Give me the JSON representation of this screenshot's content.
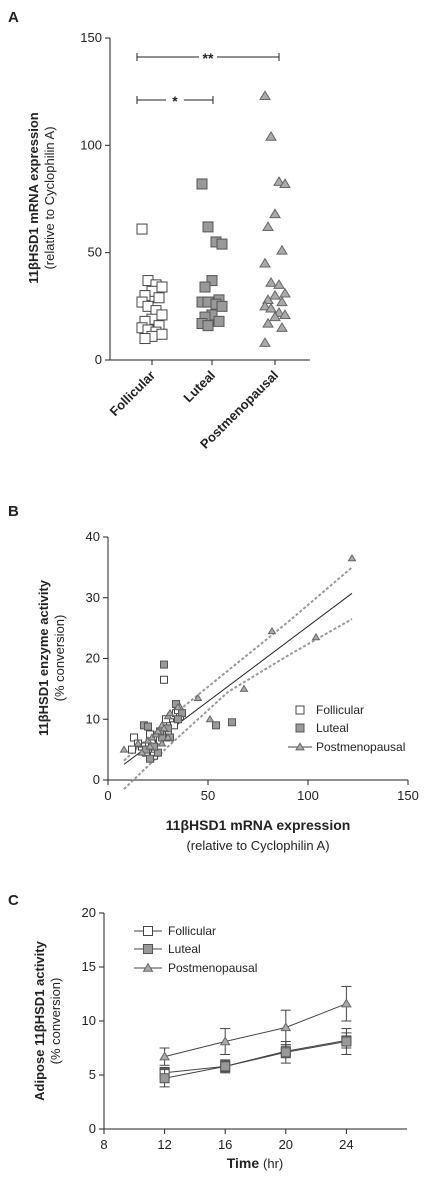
{
  "chart_data": [
    {
      "panel": "A",
      "type": "scatter",
      "ylabel": "11βHSD1 mRNA expression",
      "ylabel_sub": "(relative to Cyclophilin A)",
      "xlabel": "",
      "ylim": [
        0,
        150
      ],
      "yticks": [
        0,
        50,
        100,
        150
      ],
      "categories": [
        "Follicular",
        "Luteal",
        "Postmenopausal"
      ],
      "series": [
        {
          "name": "Follicular",
          "marker": "square-open",
          "values": [
            61,
            37,
            35,
            34,
            32,
            30,
            29,
            27,
            25,
            23,
            21,
            19,
            18,
            16,
            15,
            14,
            13,
            12,
            11,
            10
          ]
        },
        {
          "name": "Luteal",
          "marker": "square-filled",
          "values": [
            82,
            62,
            55,
            54,
            37,
            34,
            28,
            27,
            27,
            26,
            25,
            21,
            20,
            18,
            17,
            16
          ]
        },
        {
          "name": "Postmenopausal",
          "marker": "triangle-filled",
          "values": [
            123,
            104,
            83,
            82,
            68,
            62,
            51,
            45,
            36,
            35,
            31,
            30,
            28,
            27,
            25,
            24,
            22,
            21,
            20,
            17,
            15,
            8
          ]
        }
      ],
      "significance": [
        {
          "from": "Follicular",
          "to": "Luteal",
          "label": "*"
        },
        {
          "from": "Follicular",
          "to": "Postmenopausal",
          "label": "**"
        }
      ]
    },
    {
      "panel": "B",
      "type": "scatter",
      "ylabel": "11βHSD1 enzyme activity",
      "ylabel_sub": "(% conversion)",
      "xlabel": "11βHSD1 mRNA expression",
      "xlabel_sub": "(relative to Cyclophilin A)",
      "xlim": [
        0,
        150
      ],
      "ylim": [
        0,
        40
      ],
      "xticks": [
        0,
        50,
        100,
        150
      ],
      "yticks": [
        0,
        10,
        20,
        30,
        40
      ],
      "legend": [
        "Follicular",
        "Luteal",
        "Postmenopausal"
      ],
      "legend_position": "right",
      "series": [
        {
          "name": "Follicular",
          "marker": "square-open",
          "points": [
            [
              28,
              16.5
            ],
            [
              13,
              7
            ],
            [
              17,
              5.5
            ],
            [
              20,
              5
            ],
            [
              22,
              6
            ],
            [
              25,
              7
            ],
            [
              30,
              8
            ],
            [
              31,
              9.5
            ],
            [
              34,
              11
            ],
            [
              36,
              10.5
            ],
            [
              15,
              6
            ],
            [
              19,
              4.5
            ],
            [
              23,
              4
            ],
            [
              26,
              6.5
            ],
            [
              33,
              9
            ],
            [
              12,
              5
            ],
            [
              21,
              7.5
            ],
            [
              27,
              8
            ],
            [
              29,
              10
            ],
            [
              35,
              11.5
            ]
          ]
        },
        {
          "name": "Luteal",
          "marker": "square-filled",
          "points": [
            [
              28,
              19
            ],
            [
              54,
              9
            ],
            [
              62,
              9.5
            ],
            [
              18,
              9
            ],
            [
              20,
              8.8
            ],
            [
              21,
              3.5
            ],
            [
              25,
              4.5
            ],
            [
              27,
              7
            ],
            [
              26,
              8
            ],
            [
              30,
              8.5
            ],
            [
              31,
              7
            ],
            [
              34,
              12.5
            ],
            [
              37,
              11
            ],
            [
              19,
              5
            ],
            [
              23,
              5.5
            ],
            [
              35,
              10
            ]
          ]
        },
        {
          "name": "Postmenopausal",
          "marker": "triangle-filled",
          "points": [
            [
              122,
              36.5
            ],
            [
              82,
              24.5
            ],
            [
              104,
              23.5
            ],
            [
              68,
              15
            ],
            [
              45,
              13.5
            ],
            [
              36,
              12
            ],
            [
              8,
              5
            ],
            [
              15,
              6
            ],
            [
              17,
              4.5
            ],
            [
              20,
              6.5
            ],
            [
              22,
              7
            ],
            [
              24,
              7.5
            ],
            [
              25,
              8
            ],
            [
              27,
              9
            ],
            [
              28,
              8.5
            ],
            [
              30,
              10.5
            ],
            [
              31,
              11
            ],
            [
              35,
              12
            ],
            [
              51,
              10
            ],
            [
              21,
              5.5
            ],
            [
              27,
              6
            ],
            [
              30,
              7
            ]
          ]
        }
      ],
      "regression": {
        "slope": 0.247,
        "intercept": 0.6,
        "x_range": [
          8,
          122
        ]
      },
      "ci_upper": [
        [
          8,
          3.2
        ],
        [
          30,
          10
        ],
        [
          60,
          18
        ],
        [
          90,
          26
        ],
        [
          122,
          35
        ]
      ],
      "ci_lower": [
        [
          8,
          -1.5
        ],
        [
          30,
          5.5
        ],
        [
          60,
          14.5
        ],
        [
          90,
          20.5
        ],
        [
          122,
          26.5
        ]
      ]
    },
    {
      "panel": "C",
      "type": "line",
      "ylabel": "Adipose 11βHSD1 activity",
      "ylabel_sub": "(% conversion)",
      "xlabel": "Time",
      "xlabel_sub": "(hr)",
      "xlim": [
        8,
        28
      ],
      "ylim": [
        0,
        20
      ],
      "xticks": [
        8,
        12,
        16,
        20,
        24
      ],
      "yticks": [
        0,
        5,
        10,
        15,
        20
      ],
      "legend": [
        "Follicular",
        "Luteal",
        "Postmenopausal"
      ],
      "legend_position": "top-left",
      "x": [
        12,
        16,
        20,
        24
      ],
      "series": [
        {
          "name": "Follicular",
          "marker": "square-open",
          "values": [
            5.2,
            5.8,
            7.2,
            8.2
          ],
          "errors": [
            0.5,
            0.5,
            0.6,
            0.7
          ]
        },
        {
          "name": "Luteal",
          "marker": "square-filled",
          "values": [
            4.7,
            5.8,
            7.1,
            8.1
          ],
          "errors": [
            0.8,
            0.6,
            1.0,
            1.2
          ]
        },
        {
          "name": "Postmenopausal",
          "marker": "triangle-filled",
          "values": [
            6.7,
            8.1,
            9.4,
            11.6
          ],
          "errors": [
            0.8,
            1.2,
            1.6,
            1.6
          ]
        }
      ]
    }
  ],
  "panels": {
    "a": "A",
    "b": "B",
    "c": "C"
  }
}
